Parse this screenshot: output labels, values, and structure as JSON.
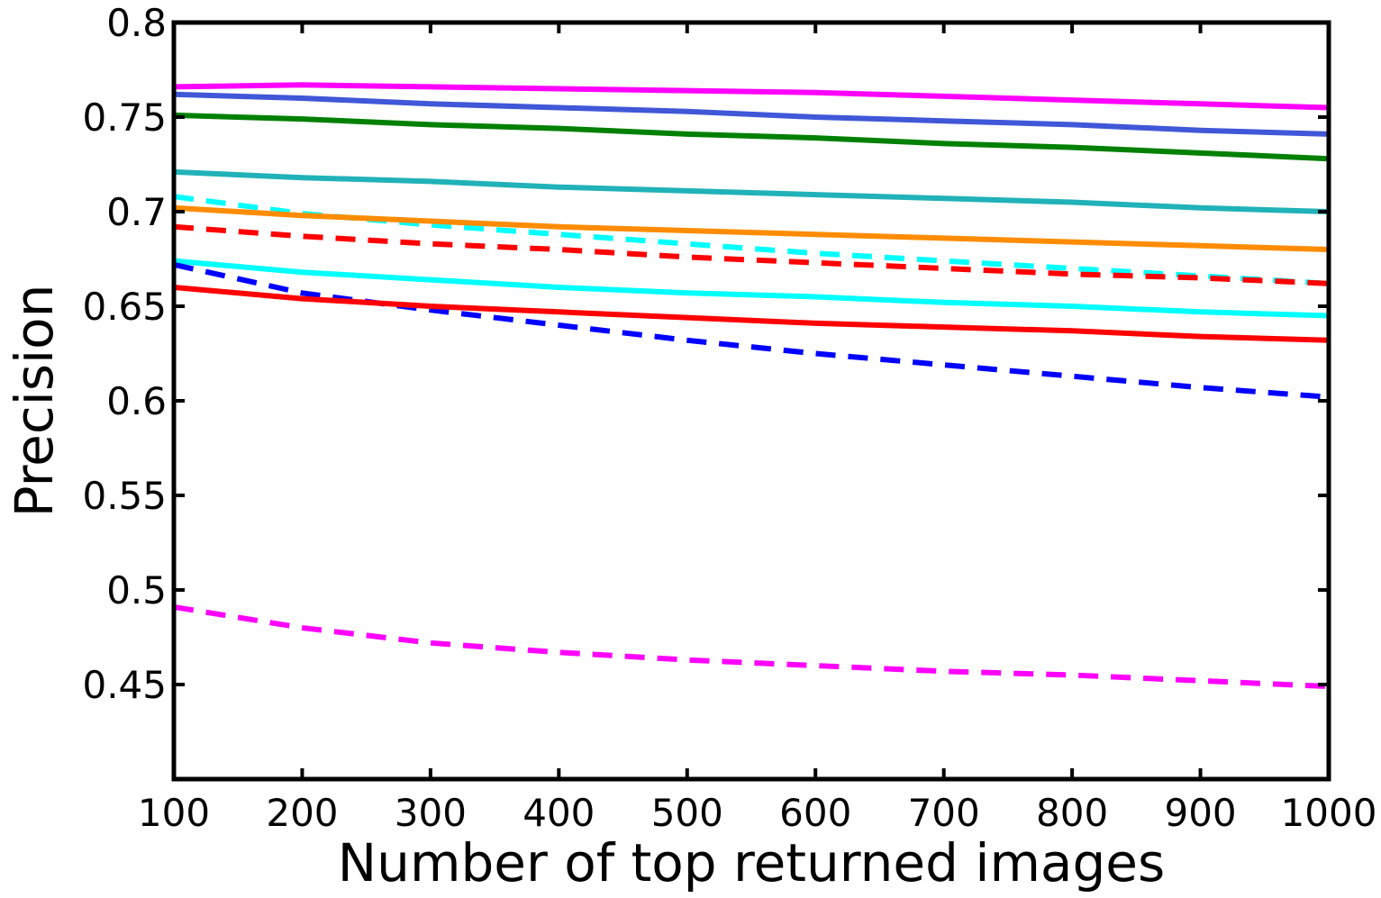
{
  "chart_data": {
    "type": "line",
    "xlabel": "Number of top returned images",
    "ylabel": "Precision",
    "x": [
      100,
      200,
      300,
      400,
      500,
      600,
      700,
      800,
      900,
      1000
    ],
    "xlim": [
      100,
      1000
    ],
    "xticks": [
      100,
      200,
      300,
      400,
      500,
      600,
      700,
      800,
      900,
      1000
    ],
    "ylim": [
      0.4,
      0.8
    ],
    "yticks": [
      0.45,
      0.5,
      0.55,
      0.6,
      0.65,
      0.7,
      0.75,
      0.8
    ],
    "series": [
      {
        "color": "#ff00ff",
        "style": "solid",
        "values": [
          0.766,
          0.767,
          0.766,
          0.765,
          0.764,
          0.763,
          0.761,
          0.759,
          0.757,
          0.755
        ]
      },
      {
        "color": "#4057d8",
        "style": "solid",
        "values": [
          0.762,
          0.76,
          0.757,
          0.755,
          0.753,
          0.75,
          0.748,
          0.746,
          0.743,
          0.741
        ]
      },
      {
        "color": "#008000",
        "style": "solid",
        "values": [
          0.751,
          0.749,
          0.746,
          0.744,
          0.741,
          0.739,
          0.736,
          0.734,
          0.731,
          0.728
        ]
      },
      {
        "color": "#20b2b8",
        "style": "solid",
        "values": [
          0.721,
          0.718,
          0.716,
          0.713,
          0.711,
          0.709,
          0.707,
          0.705,
          0.702,
          0.7
        ]
      },
      {
        "color": "#00ffff",
        "style": "dashed",
        "values": [
          0.708,
          0.699,
          0.693,
          0.688,
          0.683,
          0.678,
          0.674,
          0.67,
          0.666,
          0.662
        ]
      },
      {
        "color": "#ff8c00",
        "style": "solid",
        "values": [
          0.702,
          0.698,
          0.695,
          0.692,
          0.69,
          0.688,
          0.686,
          0.684,
          0.682,
          0.68
        ]
      },
      {
        "color": "#ff0000",
        "style": "dashed",
        "values": [
          0.692,
          0.687,
          0.683,
          0.68,
          0.676,
          0.673,
          0.67,
          0.667,
          0.665,
          0.662
        ]
      },
      {
        "color": "#00ffff",
        "style": "solid",
        "values": [
          0.674,
          0.668,
          0.664,
          0.66,
          0.657,
          0.655,
          0.652,
          0.65,
          0.647,
          0.645
        ]
      },
      {
        "color": "#0000ff",
        "style": "dashed",
        "values": [
          0.672,
          0.657,
          0.648,
          0.64,
          0.632,
          0.625,
          0.619,
          0.613,
          0.607,
          0.602
        ]
      },
      {
        "color": "#ff0000",
        "style": "solid",
        "values": [
          0.66,
          0.654,
          0.65,
          0.647,
          0.644,
          0.641,
          0.639,
          0.637,
          0.634,
          0.632
        ]
      },
      {
        "color": "#ff00ff",
        "style": "dashed",
        "values": [
          0.491,
          0.48,
          0.472,
          0.467,
          0.463,
          0.46,
          0.457,
          0.455,
          0.452,
          0.449
        ]
      }
    ]
  }
}
